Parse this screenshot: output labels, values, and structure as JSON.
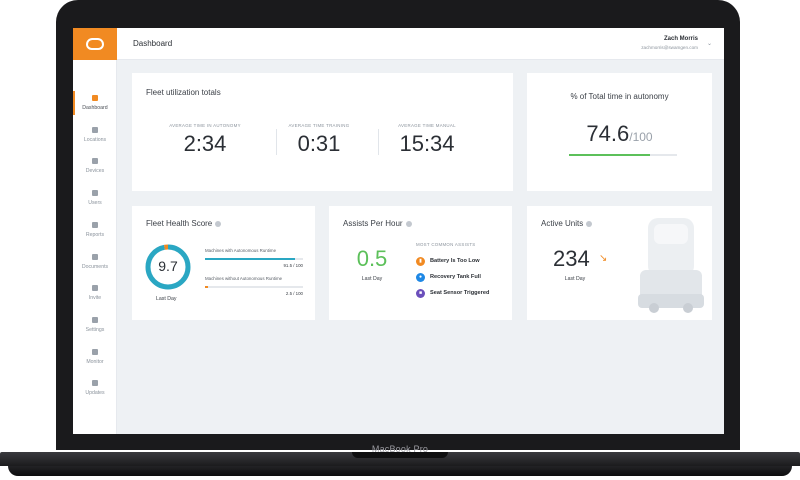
{
  "device": {
    "label": "MacBook Pro"
  },
  "brand": {
    "accent": "#f18a22",
    "green": "#5cc05a",
    "teal": "#2aa7c3",
    "purple": "#6b4fbb",
    "blue": "#1e88e5"
  },
  "sidebar": {
    "items": [
      {
        "label": "Dashboard",
        "icon": "dashboard-icon",
        "active": true
      },
      {
        "label": "Locations",
        "icon": "location-pin-icon"
      },
      {
        "label": "Devices",
        "icon": "devices-icon"
      },
      {
        "label": "Users",
        "icon": "users-icon"
      },
      {
        "label": "Reports",
        "icon": "reports-icon"
      },
      {
        "label": "Documents",
        "icon": "documents-icon"
      },
      {
        "label": "Invite",
        "icon": "mail-icon"
      },
      {
        "label": "Settings",
        "icon": "settings-icon"
      },
      {
        "label": "Monitor",
        "icon": "monitor-icon"
      },
      {
        "label": "Updates",
        "icon": "updates-icon"
      }
    ]
  },
  "header": {
    "title": "Dashboard",
    "user_name": "Zach Morris",
    "user_email": "zachmorris@swamgen.com"
  },
  "utilization": {
    "title": "Fleet utilization totals",
    "stats": [
      {
        "label": "AVERAGE TIME IN AUTONOMY",
        "value": "2:34"
      },
      {
        "label": "AVERAGE TIME TRAINING",
        "value": "0:31"
      },
      {
        "label": "AVERAGE TIME MANUAL",
        "value": "15:34"
      }
    ]
  },
  "autonomy": {
    "title": "% of Total time in autonomy",
    "value": "74.6",
    "suffix": "/100",
    "progress": 0.746
  },
  "health": {
    "title": "Fleet Health Score",
    "score": "9.7",
    "score_fraction": 0.97,
    "period": "Last Day",
    "bars": [
      {
        "label": "Machines with Autonomous Runtime",
        "value": "91.5 / 100",
        "fraction": 0.915,
        "color": "#2aa7c3"
      },
      {
        "label": "Machines without Autonomous Runtime",
        "value": "2.5 / 100",
        "fraction": 0.025,
        "color": "#f18a22"
      }
    ]
  },
  "assists": {
    "title": "Assists Per Hour",
    "value": "0.5",
    "period": "Last Day",
    "common_title": "MOST COMMON ASSISTS",
    "items": [
      {
        "label": "Battery Is Too Low",
        "icon": "battery-icon",
        "color": "#f18a22"
      },
      {
        "label": "Recovery Tank Full",
        "icon": "water-drop-icon",
        "color": "#1e88e5"
      },
      {
        "label": "Seat Sensor Triggered",
        "icon": "seat-sensor-icon",
        "color": "#6b4fbb"
      }
    ]
  },
  "active_units": {
    "title": "Active Units",
    "value": "234",
    "period": "Last Day",
    "trend": "down"
  }
}
